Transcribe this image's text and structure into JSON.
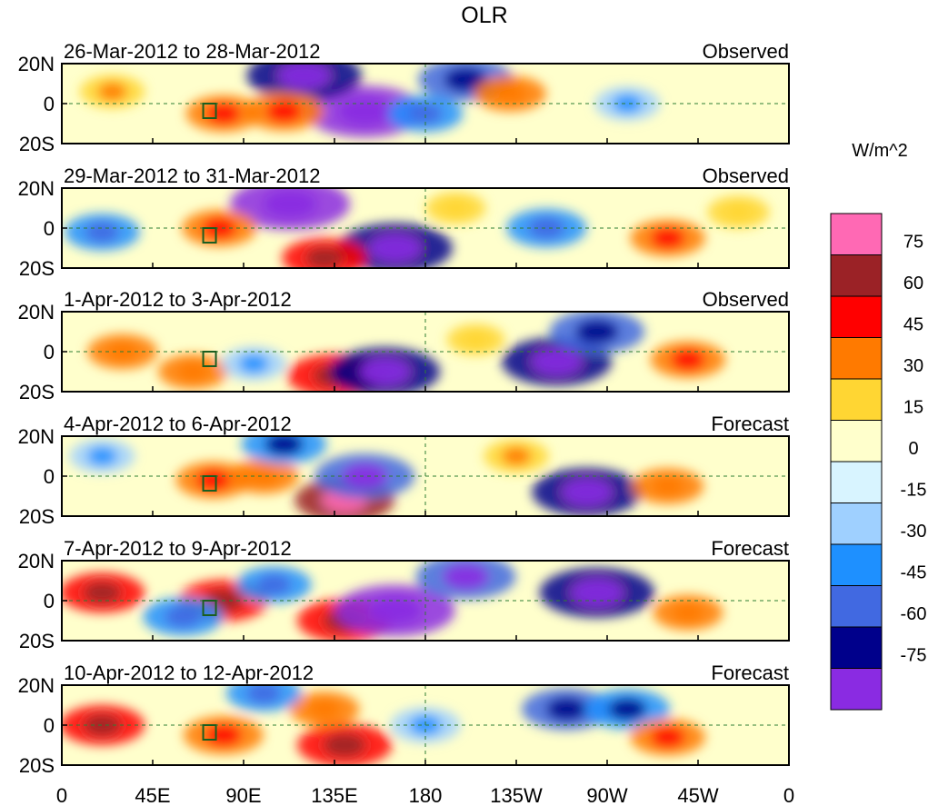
{
  "chart_data": {
    "type": "heatmap",
    "title": "OLR",
    "units_label": "W/m^2",
    "colorbar": {
      "levels": [
        "75",
        "60",
        "45",
        "30",
        "15",
        "0",
        "-15",
        "-30",
        "-45",
        "-60",
        "-75"
      ],
      "colors": [
        "#ff69b4",
        "#9b2226",
        "#ff0000",
        "#ff7a00",
        "#ffd633",
        "#ffffcc",
        "#d8f4ff",
        "#9fd0ff",
        "#1e90ff",
        "#4169e1",
        "#00008b",
        "#8a2be2"
      ]
    },
    "x_ticks": [
      "0",
      "45E",
      "90E",
      "135E",
      "180",
      "135W",
      "90W",
      "45W",
      "0"
    ],
    "y_ticks": [
      "20N",
      "0",
      "20S"
    ],
    "panels": [
      {
        "title": "26-Mar-2012 to 28-Mar-2012",
        "kind": "Observed"
      },
      {
        "title": "29-Mar-2012 to 31-Mar-2012",
        "kind": "Observed"
      },
      {
        "title": "1-Apr-2012 to 3-Apr-2012",
        "kind": "Observed"
      },
      {
        "title": "4-Apr-2012 to 6-Apr-2012",
        "kind": "Forecast"
      },
      {
        "title": "7-Apr-2012 to 9-Apr-2012",
        "kind": "Forecast"
      },
      {
        "title": "10-Apr-2012 to 12-Apr-2012",
        "kind": "Forecast"
      }
    ],
    "anomaly_features": [
      [
        {
          "lon": 150,
          "lat": -4,
          "v": -80
        },
        {
          "lon": 120,
          "lat": 14,
          "v": -75
        },
        {
          "lon": 200,
          "lat": 12,
          "v": -55
        },
        {
          "lon": 80,
          "lat": -5,
          "v": 35
        },
        {
          "lon": 110,
          "lat": -4,
          "v": 40
        },
        {
          "lon": 222,
          "lat": 5,
          "v": 32
        },
        {
          "lon": 25,
          "lat": 6,
          "v": 25
        },
        {
          "lon": 280,
          "lat": 0,
          "v": -25
        },
        {
          "lon": 180,
          "lat": -5,
          "v": -35
        }
      ],
      [
        {
          "lon": 113,
          "lat": 12,
          "v": -80
        },
        {
          "lon": 165,
          "lat": -10,
          "v": -75
        },
        {
          "lon": 130,
          "lat": -15,
          "v": 45
        },
        {
          "lon": 78,
          "lat": 0,
          "v": 35
        },
        {
          "lon": 20,
          "lat": -2,
          "v": -35
        },
        {
          "lon": 300,
          "lat": -5,
          "v": 35
        },
        {
          "lon": 195,
          "lat": 10,
          "v": 20
        },
        {
          "lon": 240,
          "lat": 0,
          "v": -40
        },
        {
          "lon": 335,
          "lat": 8,
          "v": 22
        }
      ],
      [
        {
          "lon": 135,
          "lat": -12,
          "v": 55
        },
        {
          "lon": 160,
          "lat": -10,
          "v": -70
        },
        {
          "lon": 245,
          "lat": -5,
          "v": -70
        },
        {
          "lon": 265,
          "lat": 10,
          "v": -55
        },
        {
          "lon": 30,
          "lat": 0,
          "v": 30
        },
        {
          "lon": 65,
          "lat": -10,
          "v": 30
        },
        {
          "lon": 310,
          "lat": -4,
          "v": 35
        },
        {
          "lon": 205,
          "lat": 6,
          "v": 18
        },
        {
          "lon": 95,
          "lat": -6,
          "v": -25
        }
      ],
      [
        {
          "lon": 140,
          "lat": -12,
          "v": 60
        },
        {
          "lon": 150,
          "lat": 0,
          "v": -60
        },
        {
          "lon": 260,
          "lat": -8,
          "v": -70
        },
        {
          "lon": 75,
          "lat": -2,
          "v": 35
        },
        {
          "lon": 100,
          "lat": 0,
          "v": 30
        },
        {
          "lon": 20,
          "lat": 10,
          "v": -25
        },
        {
          "lon": 300,
          "lat": -5,
          "v": 32
        },
        {
          "lon": 225,
          "lat": 10,
          "v": 25
        },
        {
          "lon": 110,
          "lat": 16,
          "v": -45
        }
      ],
      [
        {
          "lon": 140,
          "lat": -10,
          "v": 55
        },
        {
          "lon": 165,
          "lat": -5,
          "v": -80
        },
        {
          "lon": 265,
          "lat": 4,
          "v": -75
        },
        {
          "lon": 80,
          "lat": 0,
          "v": 50
        },
        {
          "lon": 20,
          "lat": 4,
          "v": 45
        },
        {
          "lon": 200,
          "lat": 12,
          "v": -60
        },
        {
          "lon": 310,
          "lat": -6,
          "v": 30
        },
        {
          "lon": 105,
          "lat": 8,
          "v": -35
        },
        {
          "lon": 60,
          "lat": -8,
          "v": -40
        }
      ],
      [
        {
          "lon": 140,
          "lat": -10,
          "v": 55
        },
        {
          "lon": 20,
          "lat": 0,
          "v": 45
        },
        {
          "lon": 80,
          "lat": -5,
          "v": 40
        },
        {
          "lon": 250,
          "lat": 8,
          "v": -50
        },
        {
          "lon": 280,
          "lat": 8,
          "v": -45
        },
        {
          "lon": 130,
          "lat": 8,
          "v": 30
        },
        {
          "lon": 300,
          "lat": -6,
          "v": 35
        },
        {
          "lon": 100,
          "lat": 16,
          "v": -35
        },
        {
          "lon": 180,
          "lat": 0,
          "v": -30
        }
      ]
    ]
  }
}
